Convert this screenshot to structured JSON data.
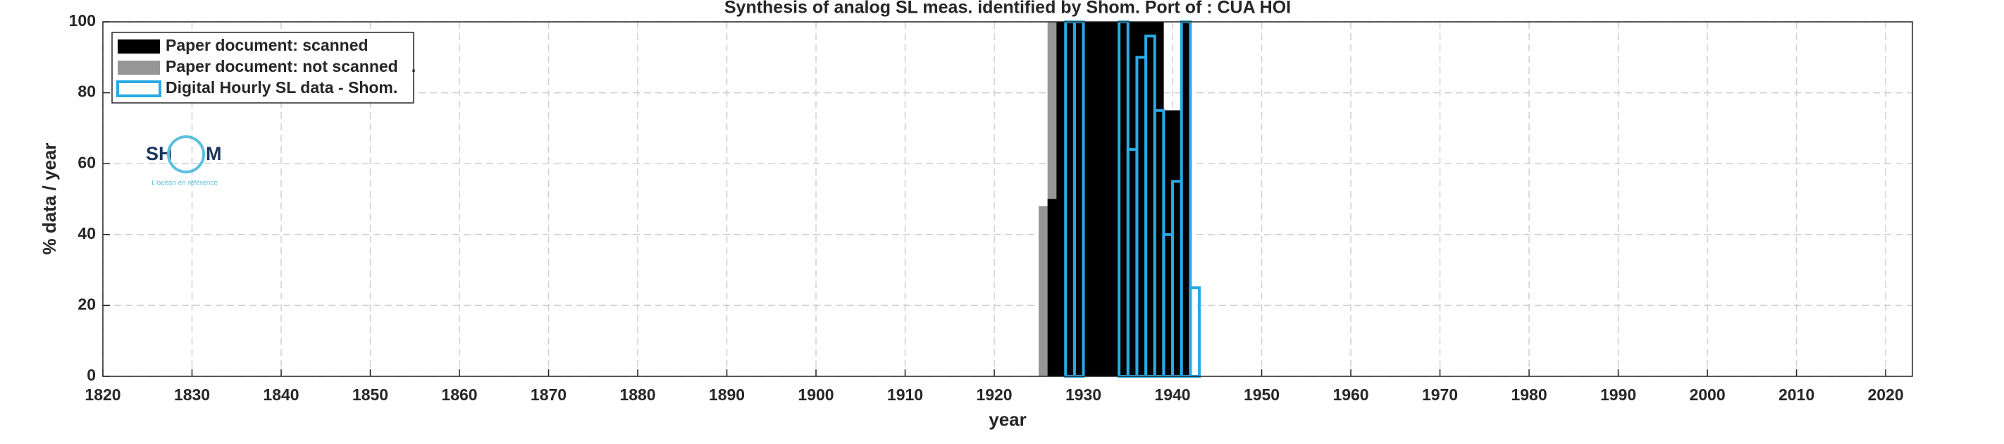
{
  "chart_data": {
    "type": "bar",
    "title": "Synthesis of analog SL meas. identified by Shom. Port of : CUA HOI",
    "xlabel": "year",
    "ylabel": "% data / year",
    "xlim": [
      1820,
      2023
    ],
    "ylim": [
      0,
      100
    ],
    "xticks": [
      1820,
      1830,
      1840,
      1850,
      1860,
      1870,
      1880,
      1890,
      1900,
      1910,
      1920,
      1930,
      1940,
      1950,
      1960,
      1970,
      1980,
      1990,
      2000,
      2010,
      2020
    ],
    "yticks": [
      0,
      20,
      40,
      60,
      80,
      100
    ],
    "grid": true,
    "legend": "upper left",
    "logo": {
      "left": "SH",
      "right": "M",
      "tagline": "L'océan en référence"
    },
    "series": [
      {
        "name": "Paper document: not scanned   .",
        "color": "#969696",
        "filled": true,
        "x": [
          1925,
          1926
        ],
        "values": [
          48,
          100
        ]
      },
      {
        "name": "Paper document: scanned",
        "color": "#000000",
        "filled": true,
        "x": [
          1926,
          1927,
          1928,
          1929,
          1930,
          1931,
          1932,
          1933,
          1934,
          1935,
          1936,
          1937,
          1938,
          1939,
          1940,
          1941
        ],
        "values": [
          50,
          100,
          100,
          100,
          100,
          100,
          100,
          100,
          100,
          100,
          100,
          100,
          100,
          75,
          75,
          100
        ]
      },
      {
        "name": "Digital Hourly SL data - Shom.",
        "color": "#29aae1",
        "filled": false,
        "x": [
          1927,
          1928,
          1929,
          1930,
          1931,
          1932,
          1933,
          1934,
          1935,
          1936,
          1937,
          1938,
          1939,
          1940,
          1941,
          1942
        ],
        "values": [
          0,
          100,
          100,
          0,
          0,
          0,
          0,
          100,
          64,
          90,
          96,
          75,
          40,
          55,
          100,
          25
        ]
      }
    ]
  }
}
